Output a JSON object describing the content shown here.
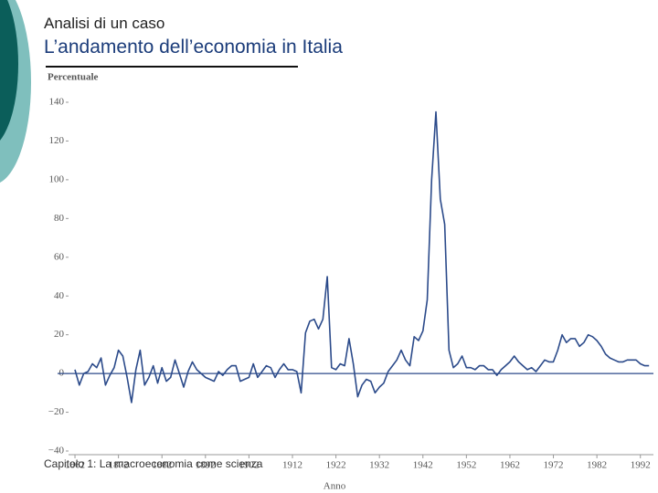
{
  "header": {
    "kicker": "Analisi di un caso",
    "title": "L’andamento dell’economia in Italia"
  },
  "footer": "Capitolo 1: La macroeconomia come scienza",
  "chart_data": {
    "type": "line",
    "ylabel": "Percentuale",
    "xlabel": "Anno",
    "x": [
      1862,
      1863,
      1864,
      1865,
      1866,
      1867,
      1868,
      1869,
      1870,
      1871,
      1872,
      1873,
      1874,
      1875,
      1876,
      1877,
      1878,
      1879,
      1880,
      1881,
      1882,
      1883,
      1884,
      1885,
      1886,
      1887,
      1888,
      1889,
      1890,
      1891,
      1892,
      1893,
      1894,
      1895,
      1896,
      1897,
      1898,
      1899,
      1900,
      1901,
      1902,
      1903,
      1904,
      1905,
      1906,
      1907,
      1908,
      1909,
      1910,
      1911,
      1912,
      1913,
      1914,
      1915,
      1916,
      1917,
      1918,
      1919,
      1920,
      1921,
      1922,
      1923,
      1924,
      1925,
      1926,
      1927,
      1928,
      1929,
      1930,
      1931,
      1932,
      1933,
      1934,
      1935,
      1936,
      1937,
      1938,
      1939,
      1940,
      1941,
      1942,
      1943,
      1944,
      1945,
      1946,
      1947,
      1948,
      1949,
      1950,
      1951,
      1952,
      1953,
      1954,
      1955,
      1956,
      1957,
      1958,
      1959,
      1960,
      1961,
      1962,
      1963,
      1964,
      1965,
      1966,
      1967,
      1968,
      1969,
      1970,
      1971,
      1972,
      1973,
      1974,
      1975,
      1976,
      1977,
      1978,
      1979,
      1980,
      1981,
      1982,
      1983,
      1984,
      1985,
      1986,
      1987,
      1988,
      1989,
      1990,
      1991,
      1992,
      1993,
      1994
    ],
    "values": [
      2,
      -6,
      0,
      1,
      5,
      3,
      8,
      -6,
      -1,
      3,
      12,
      9,
      -2,
      -15,
      2,
      12,
      -6,
      -2,
      4,
      -5,
      3,
      -4,
      -2,
      7,
      0,
      -7,
      1,
      6,
      2,
      0,
      -2,
      -3,
      -4,
      1,
      -1,
      2,
      4,
      4,
      -4,
      -3,
      -2,
      5,
      -2,
      1,
      4,
      3,
      -2,
      2,
      5,
      2,
      2,
      1,
      -10,
      21,
      27,
      28,
      23,
      28,
      50,
      3,
      2,
      5,
      4,
      18,
      5,
      -12,
      -6,
      -3,
      -4,
      -10,
      -7,
      -5,
      1,
      4,
      7,
      12,
      7,
      4,
      19,
      17,
      22,
      38,
      100,
      135,
      90,
      77,
      12,
      3,
      5,
      9,
      3,
      3,
      2,
      4,
      4,
      2,
      2,
      -1,
      2,
      4,
      6,
      9,
      6,
      4,
      2,
      3,
      1,
      4,
      7,
      6,
      6,
      12,
      20,
      16,
      18,
      18,
      14,
      16,
      20,
      19,
      17,
      14,
      10,
      8,
      7,
      6,
      6,
      7,
      7,
      7,
      5,
      4,
      4
    ],
    "color": "#2b4a8a",
    "xlim": [
      1858,
      1995
    ],
    "xticks": [
      1862,
      1872,
      1882,
      1892,
      1902,
      1912,
      1922,
      1932,
      1942,
      1952,
      1962,
      1972,
      1982,
      1992
    ],
    "ylim": [
      -40,
      140
    ],
    "yticks": [
      {
        "value": -40,
        "label": "−40"
      },
      {
        "value": -20,
        "label": "−20"
      },
      0,
      20,
      40,
      60,
      80,
      100,
      120,
      140
    ],
    "grid": false
  }
}
